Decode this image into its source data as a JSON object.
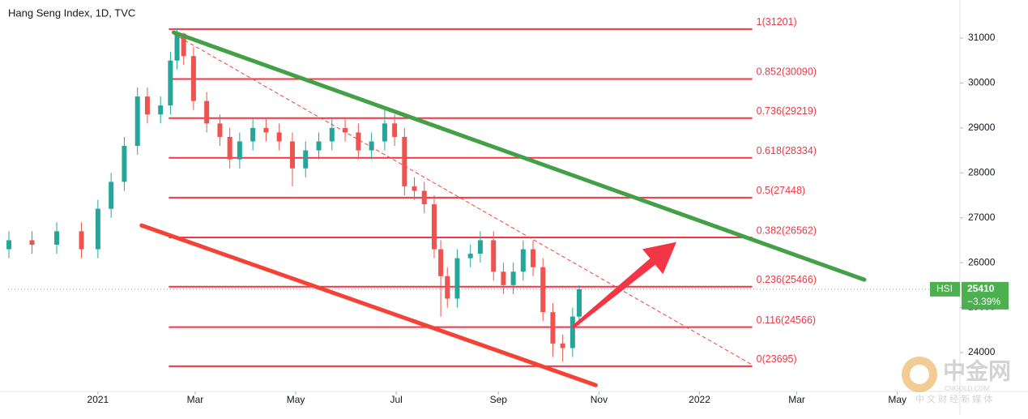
{
  "chart_data": {
    "type": "candlestick",
    "title": "Hang Seng Index, 1D, TVC",
    "x": [
      -54,
      -40,
      -25,
      -10,
      0,
      8,
      16,
      24,
      30,
      38,
      44,
      48,
      52,
      58,
      66,
      74,
      80,
      86,
      94,
      102,
      110,
      118,
      126,
      134,
      142,
      150,
      158,
      166,
      174,
      180,
      186,
      192,
      198,
      204,
      208,
      212,
      218,
      226,
      232,
      240,
      246,
      252,
      258,
      264,
      270,
      276,
      282,
      288,
      292
    ],
    "open": [
      26300,
      26500,
      26400,
      26700,
      26300,
      27200,
      27800,
      28600,
      29700,
      29300,
      29500,
      30500,
      31100,
      30600,
      29600,
      29100,
      28800,
      28300,
      28700,
      29000,
      28900,
      28700,
      28100,
      28500,
      28700,
      29000,
      28900,
      28500,
      28700,
      29100,
      28800,
      27700,
      27600,
      27300,
      26300,
      25700,
      25200,
      26100,
      26200,
      26500,
      25800,
      25500,
      25800,
      26300,
      25900,
      24900,
      24200,
      24100,
      24800
    ],
    "high": [
      26700,
      26700,
      26900,
      26900,
      27400,
      28000,
      28800,
      29900,
      29900,
      29700,
      30700,
      31200,
      31120,
      30800,
      29800,
      29300,
      29000,
      28900,
      29200,
      29200,
      29100,
      28900,
      28700,
      28900,
      29200,
      29200,
      29100,
      28900,
      29400,
      29300,
      29000,
      27900,
      27800,
      27500,
      26500,
      25900,
      26300,
      26400,
      26700,
      26700,
      26000,
      26000,
      26500,
      26500,
      26100,
      25100,
      24400,
      25000,
      25500
    ],
    "low": [
      26100,
      26200,
      26200,
      26100,
      26100,
      27000,
      27600,
      28400,
      29100,
      29100,
      29300,
      30300,
      30400,
      29400,
      28900,
      28600,
      28100,
      28100,
      28500,
      28700,
      28500,
      27700,
      27900,
      28300,
      28500,
      28700,
      28300,
      28300,
      28500,
      28600,
      27500,
      27400,
      27100,
      26100,
      24800,
      25000,
      25000,
      25900,
      26000,
      25600,
      25300,
      25300,
      25600,
      25700,
      24700,
      23900,
      23800,
      23900,
      24600
    ],
    "close": [
      26500,
      26400,
      26700,
      26300,
      27200,
      27800,
      28600,
      29700,
      29300,
      29500,
      30500,
      31100,
      30600,
      29600,
      29100,
      28800,
      28300,
      28700,
      29000,
      28900,
      28700,
      28100,
      28500,
      28700,
      29000,
      28900,
      28500,
      28700,
      29100,
      28800,
      27700,
      27600,
      27300,
      26300,
      25700,
      25200,
      26100,
      26200,
      26500,
      25800,
      25500,
      25800,
      26300,
      25900,
      24900,
      24200,
      24100,
      24800,
      25410
    ],
    "up_color": "#26a69a",
    "down_color": "#ef5350",
    "xlim": [
      -54.5,
      523
    ],
    "xticks": [
      {
        "value": 0,
        "label": "2021"
      },
      {
        "value": 59,
        "label": "Mar"
      },
      {
        "value": 120,
        "label": "May"
      },
      {
        "value": 181,
        "label": "Jul"
      },
      {
        "value": 243,
        "label": "Sep"
      },
      {
        "value": 304,
        "label": "Nov"
      },
      {
        "value": 365,
        "label": "2022"
      },
      {
        "value": 424,
        "label": "Mar"
      },
      {
        "value": 485,
        "label": "May"
      }
    ],
    "ylim": [
      23134,
      31848
    ],
    "yticks": [
      24000,
      25000,
      26000,
      27000,
      28000,
      29000,
      30000,
      31000
    ],
    "fib_color": "#f23645",
    "fib_x": [
      43,
      397
    ],
    "fib_levels": [
      {
        "price": 31201,
        "label": "1(31201)"
      },
      {
        "price": 30090,
        "label": "0.852(30090)"
      },
      {
        "price": 29219,
        "label": "0.736(29219)"
      },
      {
        "price": 28334,
        "label": "0.618(28334)"
      },
      {
        "price": 27448,
        "label": "0.5(27448)"
      },
      {
        "price": 26562,
        "label": "0.382(26562)"
      },
      {
        "price": 25466,
        "label": "0.236(25466)"
      },
      {
        "price": 24566,
        "label": "0.116(24566)"
      },
      {
        "price": 23695,
        "label": "0(23695)"
      }
    ],
    "trendlines": [
      {
        "color": "#43a047",
        "x": [
          46,
          465
        ],
        "y": [
          31126,
          25621
        ],
        "dashed": false
      },
      {
        "color": "#f44336",
        "x": [
          26.5,
          302
        ],
        "y": [
          26830,
          23274
        ],
        "dashed": false
      },
      {
        "color": "#f44336",
        "x": [
          46,
          397
        ],
        "y": [
          31090,
          23726
        ],
        "dashed": true
      }
    ],
    "arrow": {
      "color": "#f23645",
      "x": [
        288,
        351
      ],
      "y": [
        24560,
        26460
      ]
    },
    "last_price": {
      "symbol": "HSI",
      "price": 25410,
      "change": "−3.39%",
      "color": "#4caf50"
    }
  },
  "watermark": {
    "name": "中金网",
    "site": "CNGOLD.COM",
    "tagline": "中 文 财 经 新 媒 体"
  }
}
